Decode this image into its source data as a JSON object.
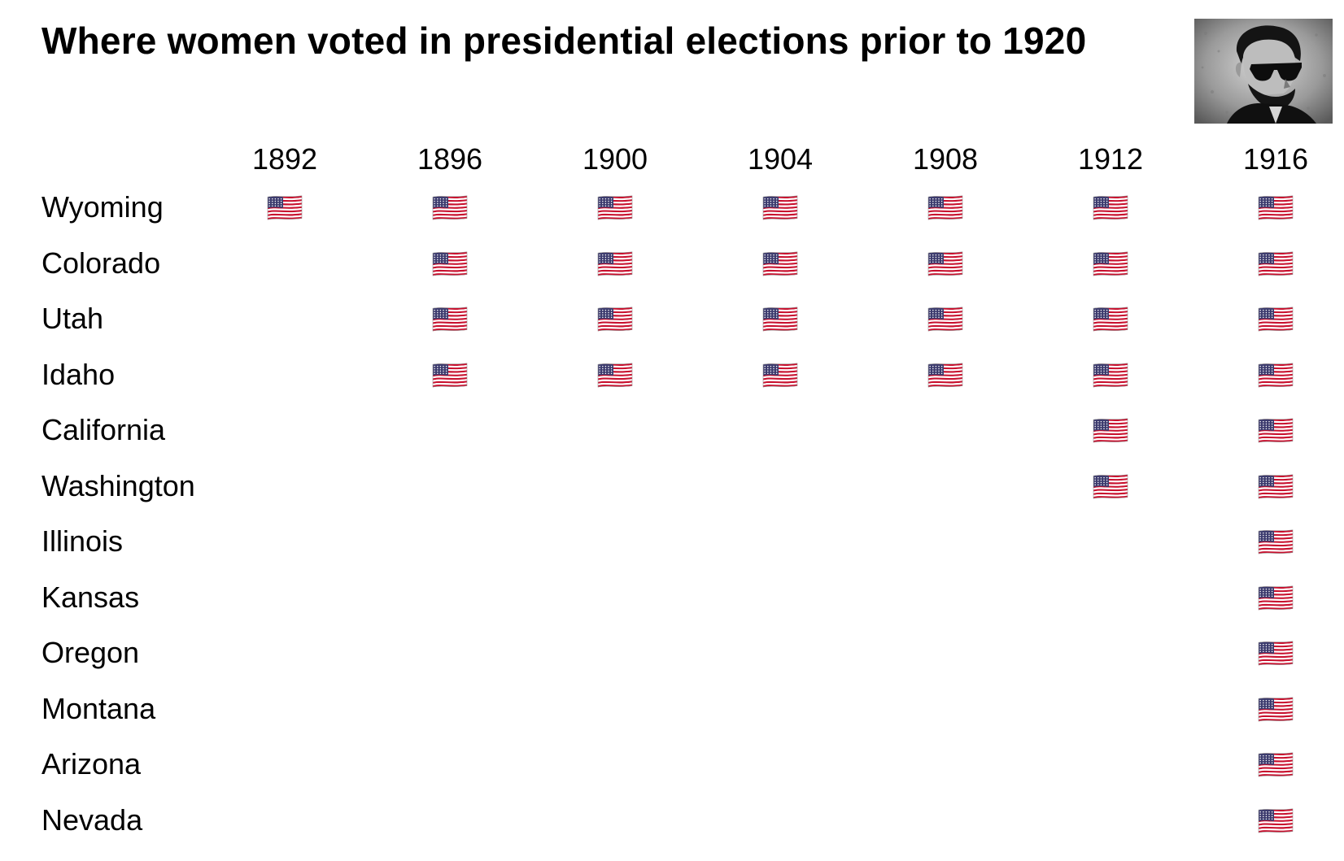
{
  "header": {
    "title": "Where women voted in presidential elections prior to 1920"
  },
  "portrait": {
    "icon": "lincoln-sunglasses-portrait-icon"
  },
  "colors": {
    "flag_red": "#c8102e",
    "flag_blue": "#3c3b6e",
    "flag_white": "#ffffff",
    "text": "#000000"
  },
  "chart_data": {
    "type": "table",
    "title": "Where women voted in presidential elections prior to 1920",
    "marker_icon": "us-flag-icon",
    "x": [
      "1892",
      "1896",
      "1900",
      "1904",
      "1908",
      "1912",
      "1916"
    ],
    "rows": [
      {
        "state": "Wyoming",
        "voted": [
          1,
          1,
          1,
          1,
          1,
          1,
          1
        ]
      },
      {
        "state": "Colorado",
        "voted": [
          0,
          1,
          1,
          1,
          1,
          1,
          1
        ]
      },
      {
        "state": "Utah",
        "voted": [
          0,
          1,
          1,
          1,
          1,
          1,
          1
        ]
      },
      {
        "state": "Idaho",
        "voted": [
          0,
          1,
          1,
          1,
          1,
          1,
          1
        ]
      },
      {
        "state": "California",
        "voted": [
          0,
          0,
          0,
          0,
          0,
          1,
          1
        ]
      },
      {
        "state": "Washington",
        "voted": [
          0,
          0,
          0,
          0,
          0,
          1,
          1
        ]
      },
      {
        "state": "Illinois",
        "voted": [
          0,
          0,
          0,
          0,
          0,
          0,
          1
        ]
      },
      {
        "state": "Kansas",
        "voted": [
          0,
          0,
          0,
          0,
          0,
          0,
          1
        ]
      },
      {
        "state": "Oregon",
        "voted": [
          0,
          0,
          0,
          0,
          0,
          0,
          1
        ]
      },
      {
        "state": "Montana",
        "voted": [
          0,
          0,
          0,
          0,
          0,
          0,
          1
        ]
      },
      {
        "state": "Arizona",
        "voted": [
          0,
          0,
          0,
          0,
          0,
          0,
          1
        ]
      },
      {
        "state": "Nevada",
        "voted": [
          0,
          0,
          0,
          0,
          0,
          0,
          1
        ]
      }
    ]
  }
}
